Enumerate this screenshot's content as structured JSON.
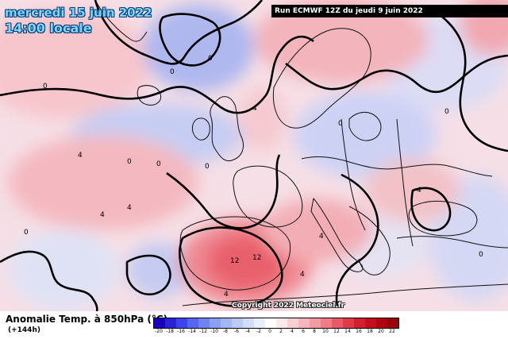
{
  "header": {
    "date": "mercredi 15 juin 2022",
    "local_time": "14:00 locale",
    "run": "Run ECMWF 12Z du jeudi 9 juin 2022"
  },
  "footer": {
    "copyright": "Copyright 2022 Meteociel.fr",
    "legend_title": "Anomalie Temp. à 850hPa (°C)",
    "lead_time": "(+144h)"
  },
  "legend": {
    "ticks": [
      "-20",
      "-18",
      "-16",
      "-14",
      "-12",
      "-10",
      "-8",
      "-6",
      "-4",
      "-2",
      "0",
      "2",
      "4",
      "6",
      "8",
      "10",
      "12",
      "14",
      "16",
      "18",
      "20",
      "22"
    ],
    "colors": [
      "#1a00b8",
      "#2a22d6",
      "#3c44ec",
      "#5466f2",
      "#6f84f4",
      "#8aa0f6",
      "#a2b6f8",
      "#bccaf9",
      "#d3dcfb",
      "#e8eefd",
      "#ffffff",
      "#fde8ea",
      "#fbd0d4",
      "#f8b6bc",
      "#f49aa2",
      "#ef7c86",
      "#e85a66",
      "#df3a48",
      "#d3202e",
      "#c40e1c",
      "#b00010",
      "#98000a"
    ]
  },
  "contour_labels": [
    "0",
    "0",
    "0",
    "0",
    "0",
    "0",
    "0",
    "0",
    "4",
    "4",
    "4",
    "4",
    "4",
    "4",
    "12",
    "12",
    "0",
    "4",
    "4",
    "0"
  ]
}
